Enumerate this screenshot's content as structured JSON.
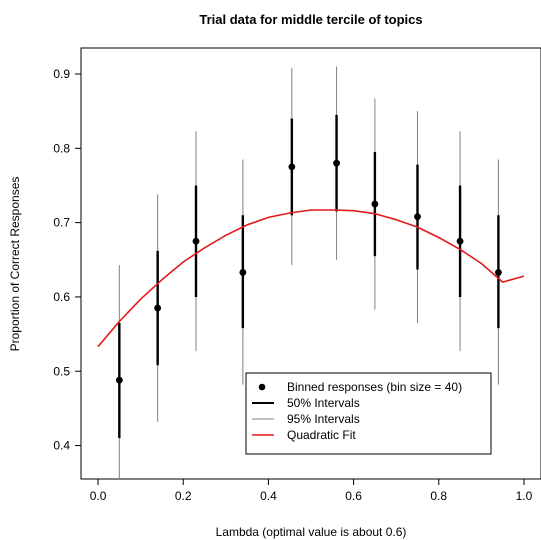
{
  "chart_data": {
    "type": "scatter",
    "title": "Trial data for middle tercile of topics",
    "xlabel": "Lambda (optimal value is about 0.6)",
    "ylabel": "Proportion of Correct Responses",
    "xlim": [
      -0.04,
      1.04
    ],
    "ylim": [
      0.355,
      0.935
    ],
    "xticks": [
      0.0,
      0.2,
      0.4,
      0.6,
      0.8,
      1.0
    ],
    "xtick_labels": [
      "0.0",
      "0.2",
      "0.4",
      "0.6",
      "0.8",
      "1.0"
    ],
    "yticks": [
      0.4,
      0.5,
      0.6,
      0.7,
      0.8,
      0.9
    ],
    "ytick_labels": [
      "0.4",
      "0.5",
      "0.6",
      "0.7",
      "0.8",
      "0.9"
    ],
    "grid": false,
    "legend_position": "bottom-right",
    "legend": [
      {
        "label": "Binned responses (bin size = 40)",
        "style": "point"
      },
      {
        "label": "50% Intervals",
        "style": "thick-line"
      },
      {
        "label": "95% Intervals",
        "style": "thin-line"
      },
      {
        "label": "Quadratic Fit",
        "style": "red-line"
      }
    ],
    "points": [
      {
        "x": 0.05,
        "y": 0.488,
        "lo50": 0.41,
        "hi50": 0.565,
        "lo95": 0.355,
        "hi95": 0.643
      },
      {
        "x": 0.14,
        "y": 0.585,
        "lo50": 0.508,
        "hi50": 0.662,
        "lo95": 0.432,
        "hi95": 0.738
      },
      {
        "x": 0.23,
        "y": 0.675,
        "lo50": 0.6,
        "hi50": 0.75,
        "lo95": 0.527,
        "hi95": 0.823
      },
      {
        "x": 0.34,
        "y": 0.633,
        "lo50": 0.558,
        "hi50": 0.71,
        "lo95": 0.482,
        "hi95": 0.785
      },
      {
        "x": 0.455,
        "y": 0.775,
        "lo50": 0.71,
        "hi50": 0.84,
        "lo95": 0.643,
        "hi95": 0.908
      },
      {
        "x": 0.56,
        "y": 0.78,
        "lo50": 0.715,
        "hi50": 0.845,
        "lo95": 0.65,
        "hi95": 0.91
      },
      {
        "x": 0.65,
        "y": 0.725,
        "lo50": 0.655,
        "hi50": 0.795,
        "lo95": 0.583,
        "hi95": 0.867
      },
      {
        "x": 0.75,
        "y": 0.708,
        "lo50": 0.637,
        "hi50": 0.778,
        "lo95": 0.565,
        "hi95": 0.85
      },
      {
        "x": 0.85,
        "y": 0.675,
        "lo50": 0.6,
        "hi50": 0.75,
        "lo95": 0.527,
        "hi95": 0.823
      },
      {
        "x": 0.94,
        "y": 0.633,
        "lo50": 0.558,
        "hi50": 0.71,
        "lo95": 0.482,
        "hi95": 0.785
      }
    ],
    "fit": {
      "x": [
        0.0,
        0.05,
        0.1,
        0.15,
        0.2,
        0.25,
        0.3,
        0.35,
        0.4,
        0.45,
        0.5,
        0.55,
        0.6,
        0.65,
        0.7,
        0.75,
        0.8,
        0.85,
        0.9,
        0.95,
        1.0
      ],
      "y": [
        0.533,
        0.567,
        0.597,
        0.623,
        0.647,
        0.666,
        0.683,
        0.697,
        0.707,
        0.713,
        0.717,
        0.717,
        0.716,
        0.712,
        0.704,
        0.694,
        0.68,
        0.664,
        0.645,
        0.62,
        0.628
      ]
    },
    "colors": {
      "points": "#000000",
      "interval50": "#000000",
      "interval95": "#808080",
      "fit": "#e31a1c",
      "axis": "#000000"
    }
  }
}
